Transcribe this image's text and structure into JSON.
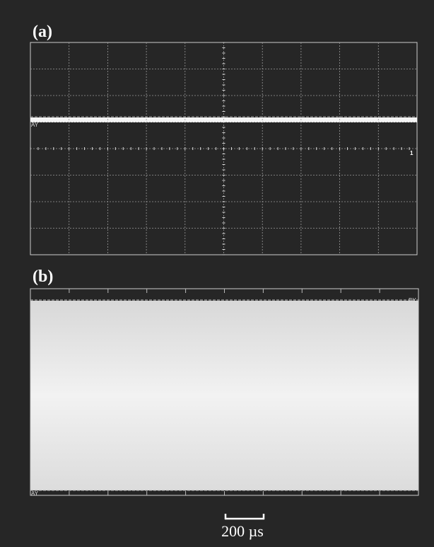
{
  "panels": [
    {
      "label": "(a)",
      "markers": [
        "AY",
        "1"
      ]
    },
    {
      "label": "(b)",
      "markers": [
        "BY",
        "AY"
      ]
    }
  ],
  "scale_bar": {
    "label": "200 µs"
  }
}
